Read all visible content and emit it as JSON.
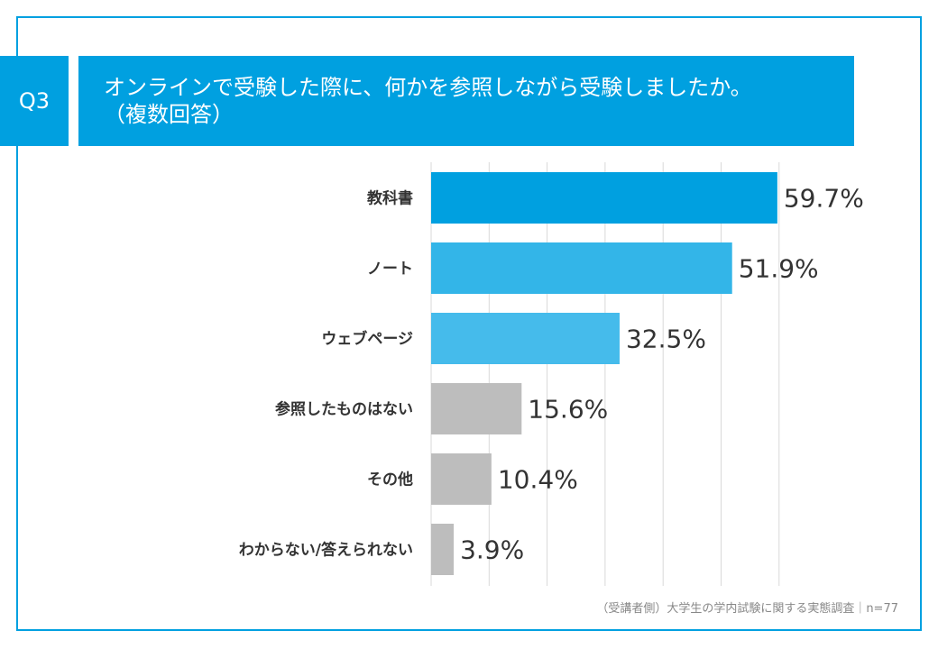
{
  "question_label": "Q3",
  "title_line1": "オンラインで受験した際に、何かを参照しながら受験しましたか。",
  "title_line2": "（複数回答）",
  "source": "（受講者側）大学生の学内試験に関する実態調査｜n=77",
  "colors": {
    "accent": "#00a0e0",
    "bar_top": "#00a0e0",
    "bar_mid": "#33b5e8",
    "bar_web": "#45bbeb",
    "bar_gray": "#bdbdbd",
    "grid": "#d9d9d9"
  },
  "chart_data": {
    "type": "bar",
    "orientation": "horizontal",
    "title": "オンラインで受験した際に、何かを参照しながら受験しましたか。（複数回答）",
    "unit": "%",
    "xlim": [
      0,
      60
    ],
    "grid_step": 10,
    "categories": [
      "教科書",
      "ノート",
      "ウェブページ",
      "参照したものはない",
      "その他",
      "わからない/答えられない"
    ],
    "values": [
      59.7,
      51.9,
      32.5,
      15.6,
      10.4,
      3.9
    ],
    "labels": [
      "59.7%",
      "51.9%",
      "32.5%",
      "15.6%",
      "10.4%",
      "3.9%"
    ],
    "bar_colors": [
      "#00a0e0",
      "#33b5e8",
      "#45bbeb",
      "#bdbdbd",
      "#bdbdbd",
      "#bdbdbd"
    ]
  }
}
